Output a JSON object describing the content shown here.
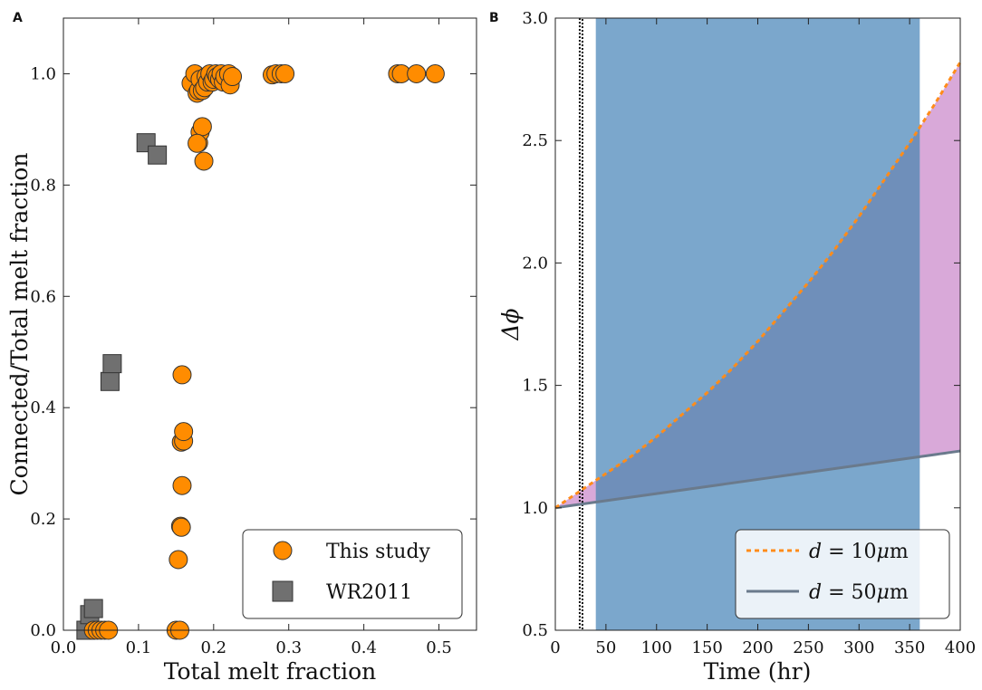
{
  "chart_data": [
    {
      "panel": "A",
      "type": "scatter",
      "xlabel": "Total melt fraction",
      "ylabel": "Connected/Total melt fraction",
      "xlim": [
        0.0,
        0.55
      ],
      "ylim": [
        0.0,
        1.1
      ],
      "xticks": [
        "0.0",
        "0.1",
        "0.2",
        "0.3",
        "0.4",
        "0.5"
      ],
      "yticks": [
        "0.0",
        "0.2",
        "0.4",
        "0.6",
        "0.8",
        "1.0"
      ],
      "legend_position": "bottom-right",
      "series": [
        {
          "name": "This study",
          "marker": "circle",
          "color": "#ff8c00",
          "points": [
            [
              0.04,
              0.0
            ],
            [
              0.045,
              0.0
            ],
            [
              0.05,
              0.0
            ],
            [
              0.055,
              0.0
            ],
            [
              0.06,
              0.0
            ],
            [
              0.15,
              0.0
            ],
            [
              0.155,
              0.0
            ],
            [
              0.153,
              0.127
            ],
            [
              0.156,
              0.187
            ],
            [
              0.157,
              0.185
            ],
            [
              0.158,
              0.26
            ],
            [
              0.157,
              0.338
            ],
            [
              0.16,
              0.34
            ],
            [
              0.16,
              0.357
            ],
            [
              0.158,
              0.459
            ],
            [
              0.17,
              0.983
            ],
            [
              0.175,
              1.0
            ],
            [
              0.178,
              0.965
            ],
            [
              0.18,
              0.97
            ],
            [
              0.182,
              0.99
            ],
            [
              0.185,
              0.97
            ],
            [
              0.188,
              0.975
            ],
            [
              0.19,
              0.995
            ],
            [
              0.192,
              0.985
            ],
            [
              0.195,
              1.0
            ],
            [
              0.198,
              0.985
            ],
            [
              0.2,
              0.99
            ],
            [
              0.203,
              1.0
            ],
            [
              0.205,
              0.995
            ],
            [
              0.208,
              0.99
            ],
            [
              0.21,
              1.0
            ],
            [
              0.213,
              0.985
            ],
            [
              0.215,
              0.995
            ],
            [
              0.22,
              1.0
            ],
            [
              0.222,
              0.98
            ],
            [
              0.225,
              0.995
            ],
            [
              0.18,
              0.876
            ],
            [
              0.182,
              0.895
            ],
            [
              0.185,
              0.905
            ],
            [
              0.187,
              0.843
            ],
            [
              0.178,
              0.875
            ],
            [
              0.278,
              0.998
            ],
            [
              0.283,
              1.0
            ],
            [
              0.29,
              1.0
            ],
            [
              0.295,
              1.0
            ],
            [
              0.445,
              1.0
            ],
            [
              0.45,
              1.0
            ],
            [
              0.47,
              1.0
            ],
            [
              0.495,
              1.0
            ]
          ]
        },
        {
          "name": "WR2011",
          "marker": "square",
          "color": "#707070",
          "points": [
            [
              0.03,
              0.0
            ],
            [
              0.035,
              0.028
            ],
            [
              0.04,
              0.039
            ],
            [
              0.062,
              0.447
            ],
            [
              0.065,
              0.479
            ],
            [
              0.11,
              0.876
            ],
            [
              0.125,
              0.854
            ]
          ]
        }
      ]
    },
    {
      "panel": "B",
      "type": "line",
      "xlabel": "Time (hr)",
      "ylabel": "Δϕ",
      "xlim": [
        0,
        400
      ],
      "ylim": [
        0.5,
        3.0
      ],
      "xticks": [
        "0",
        "50",
        "100",
        "150",
        "200",
        "250",
        "300",
        "350",
        "400"
      ],
      "yticks": [
        "0.5",
        "1.0",
        "1.5",
        "2.0",
        "2.5",
        "3.0"
      ],
      "legend_position": "bottom-right",
      "blue_band_x": [
        40,
        360
      ],
      "vertical_dotted_line_x": 25,
      "series": [
        {
          "name": "d = 10μm",
          "label_var": "d",
          "label_eq": " = 10",
          "label_mu": "μ",
          "label_unit": "m",
          "style": "dashed",
          "color": "#ff8c1a",
          "x": [
            0,
            25,
            50,
            75,
            100,
            125,
            150,
            175,
            200,
            225,
            250,
            275,
            300,
            325,
            350,
            375,
            400
          ],
          "values": [
            1.0,
            1.07,
            1.14,
            1.21,
            1.29,
            1.38,
            1.47,
            1.57,
            1.68,
            1.8,
            1.92,
            2.05,
            2.19,
            2.34,
            2.49,
            2.65,
            2.82
          ]
        },
        {
          "name": "d = 50μm",
          "label_var": "d",
          "label_eq": " = 50",
          "label_mu": "μ",
          "label_unit": "m",
          "style": "solid",
          "color": "#6a7a8c",
          "x": [
            0,
            50,
            100,
            150,
            200,
            250,
            300,
            350,
            400
          ],
          "values": [
            1.0,
            1.029,
            1.058,
            1.087,
            1.116,
            1.145,
            1.174,
            1.203,
            1.232
          ]
        }
      ]
    }
  ]
}
